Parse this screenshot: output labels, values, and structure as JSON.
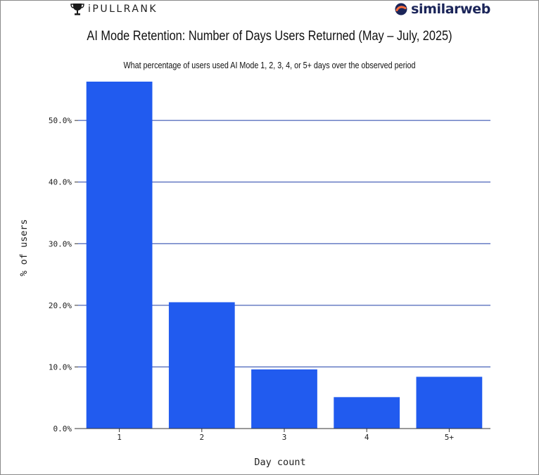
{
  "header": {
    "left_brand": "iPULLRANK",
    "right_brand": "similarweb"
  },
  "chart_data": {
    "type": "bar",
    "title": "AI Mode Retention: Number of Days Users Returned (May – July, 2025)",
    "subtitle": "What percentage of users used AI Mode 1, 2, 3, 4, or 5+ days over the observed period",
    "xlabel": "Day count",
    "ylabel": "% of users",
    "categories": [
      "1",
      "2",
      "3",
      "4",
      "5+"
    ],
    "values": [
      56.3,
      20.5,
      9.6,
      5.1,
      8.4
    ],
    "ylim": [
      0,
      56.3
    ],
    "yticks": [
      0,
      10,
      20,
      30,
      40,
      50
    ],
    "ytick_labels": [
      "0.0%",
      "10.0%",
      "20.0%",
      "30.0%",
      "40.0%",
      "50.0%"
    ],
    "bar_color": "#215bef",
    "grid_color": "#1f3fa8",
    "grid": true,
    "legend": "none"
  }
}
